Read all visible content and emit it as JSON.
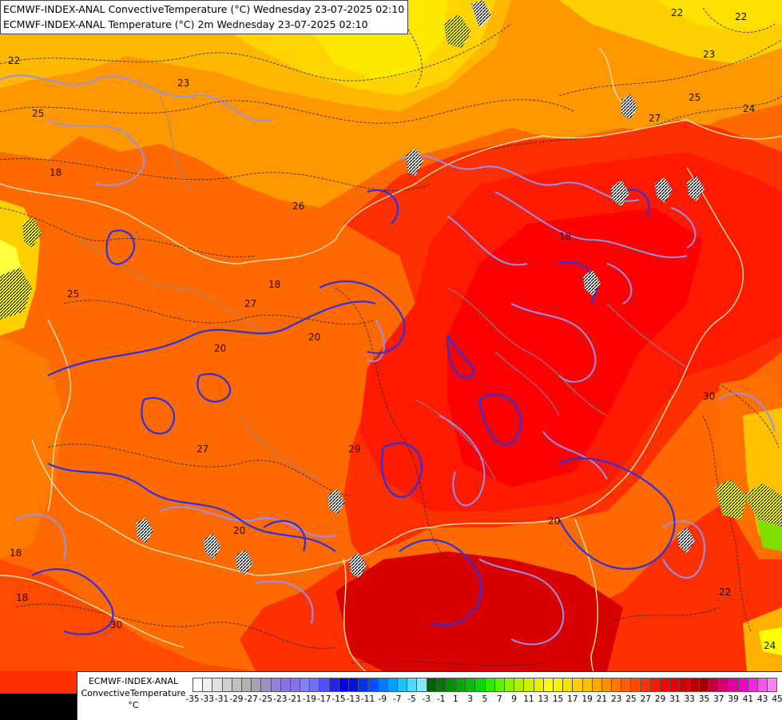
{
  "titles": {
    "line1": "ECMWF-INDEX-ANAL ConvectiveTemperature (°C) Wednesday 23-07-2025 02:10",
    "line2": "ECMWF-INDEX-ANAL Temperature (°C) 2m Wednesday 23-07-2025 02:10"
  },
  "legend": {
    "model": "ECMWF-INDEX-ANAL",
    "field": "ConvectiveTemperature",
    "unit": "°C",
    "colors": [
      "#ffffff",
      "#f0f0f0",
      "#e0e0e0",
      "#d0d0d0",
      "#c0c0c0",
      "#b0b0b0",
      "#a8a0b8",
      "#9e90c8",
      "#9880d8",
      "#9070e0",
      "#8870e8",
      "#8080f0",
      "#7070f8",
      "#5050ff",
      "#2020ff",
      "#0000f0",
      "#0010e0",
      "#0030f0",
      "#0050ff",
      "#0078ff",
      "#00a0ff",
      "#20c0ff",
      "#50d8ff",
      "#80e8ff",
      "#006000",
      "#007800",
      "#009000",
      "#00a800",
      "#00c000",
      "#00d800",
      "#30e800",
      "#60f000",
      "#90f000",
      "#b0f000",
      "#d0f000",
      "#e8f000",
      "#ffff00",
      "#fff000",
      "#ffe000",
      "#ffd000",
      "#ffc000",
      "#ffa800",
      "#ff9000",
      "#ff7800",
      "#ff6000",
      "#ff4800",
      "#ff3000",
      "#ff1800",
      "#ff0000",
      "#e80000",
      "#d00000",
      "#b80000",
      "#a00000",
      "#c00040",
      "#d00070",
      "#e000a0",
      "#f000c0",
      "#ff20e0",
      "#ff50f0",
      "#ff80ff"
    ],
    "ticks": [
      "-35",
      "-33",
      "-31",
      "-29",
      "-27",
      "-25",
      "-23",
      "-21",
      "-19",
      "-17",
      "-15",
      "-13",
      "-11",
      "-9",
      "-7",
      "-5",
      "-3",
      "-1",
      "1",
      "3",
      "5",
      "7",
      "9",
      "11",
      "13",
      "15",
      "17",
      "19",
      "21",
      "23",
      "25",
      "27",
      "29",
      "31",
      "33",
      "35",
      "37",
      "39",
      "41",
      "43",
      "45"
    ]
  },
  "contour_labels": [
    {
      "text": "22",
      "id": "lbl-22a"
    },
    {
      "text": "22",
      "id": "lbl-22b"
    },
    {
      "text": "23",
      "id": "lbl-23a"
    },
    {
      "text": "23",
      "id": "lbl-23b"
    },
    {
      "text": "22",
      "id": "lbl-22c"
    },
    {
      "text": "25",
      "id": "lbl-25a"
    },
    {
      "text": "25",
      "id": "lbl-25b"
    },
    {
      "text": "24",
      "id": "lbl-24a"
    },
    {
      "text": "27",
      "id": "lbl-27a"
    },
    {
      "text": "26",
      "id": "lbl-26a"
    },
    {
      "text": "18",
      "id": "lbl-18a"
    },
    {
      "text": "18",
      "id": "lbl-18b"
    },
    {
      "text": "25",
      "id": "lbl-25c"
    },
    {
      "text": "27",
      "id": "lbl-27b"
    },
    {
      "text": "20",
      "id": "lbl-20a"
    },
    {
      "text": "20",
      "id": "lbl-20b"
    },
    {
      "text": "18",
      "id": "lbl-18c"
    },
    {
      "text": "27",
      "id": "lbl-27c"
    },
    {
      "text": "29",
      "id": "lbl-29a"
    },
    {
      "text": "30",
      "id": "lbl-30a"
    },
    {
      "text": "20",
      "id": "lbl-20c"
    },
    {
      "text": "18",
      "id": "lbl-18d"
    },
    {
      "text": "18",
      "id": "lbl-18e"
    },
    {
      "text": "30",
      "id": "lbl-30b"
    },
    {
      "text": "20",
      "id": "lbl-20d"
    },
    {
      "text": "24",
      "id": "lbl-24b"
    },
    {
      "text": "22",
      "id": "lbl-22d"
    }
  ]
}
